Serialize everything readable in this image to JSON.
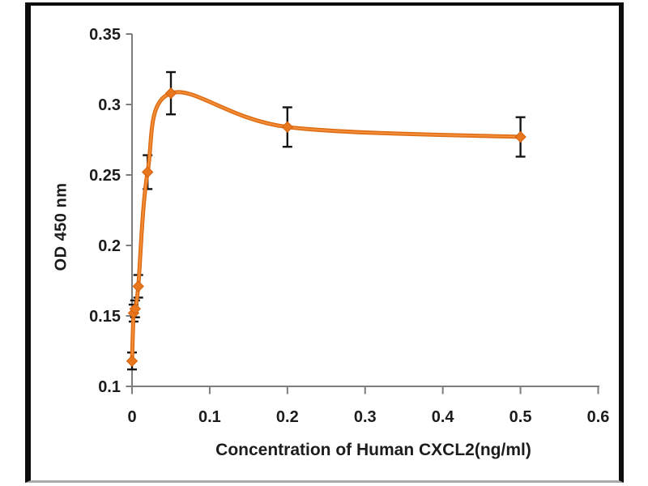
{
  "figure": {
    "background": "#ffffff",
    "frame_border_color": "#0d0d0d",
    "frame_bottom_edge_color": "#a9a9a9"
  },
  "chart_data": {
    "type": "line",
    "title": "",
    "xlabel": "Concentration of Human CXCL2(ng/ml)",
    "ylabel": "OD 450 nm",
    "xlim": [
      0,
      0.6
    ],
    "ylim": [
      0.1,
      0.35
    ],
    "grid": false,
    "legend": null,
    "line_smooth": true,
    "marker": "diamond",
    "x_ticks": {
      "values": [
        0,
        0.1,
        0.2,
        0.3,
        0.4,
        0.5,
        0.6
      ],
      "labels": [
        "0",
        "0.1",
        "0.2",
        "0.3",
        "0.4",
        "0.5",
        "0.6"
      ]
    },
    "y_ticks": {
      "values": [
        0.1,
        0.15,
        0.2,
        0.25,
        0.3,
        0.35
      ],
      "labels": [
        "0.1",
        "0.15",
        "0.2",
        "0.25",
        "0.3",
        "0.35"
      ]
    },
    "series": [
      {
        "points": [
          {
            "x": 0,
            "y": 0.118,
            "err": 0.006
          },
          {
            "x": 0.002,
            "y": 0.152,
            "err": 0.006
          },
          {
            "x": 0.004,
            "y": 0.155,
            "err": 0.006
          },
          {
            "x": 0.008,
            "y": 0.171,
            "err": 0.008
          },
          {
            "x": 0.02,
            "y": 0.252,
            "err": 0.012
          },
          {
            "x": 0.05,
            "y": 0.308,
            "err": 0.015
          },
          {
            "x": 0.2,
            "y": 0.284,
            "err": 0.014
          },
          {
            "x": 0.5,
            "y": 0.277,
            "err": 0.014
          }
        ]
      }
    ],
    "colors": {
      "series": "#e8771f",
      "series_shadow": "#d96a10",
      "series_highlight": "#f5923e",
      "marker_fill": "#e8761c",
      "marker_edge": "#d2620e",
      "error_bar": "#141414",
      "axis": "#7d7d7d",
      "text": "#1c1c1c"
    }
  }
}
